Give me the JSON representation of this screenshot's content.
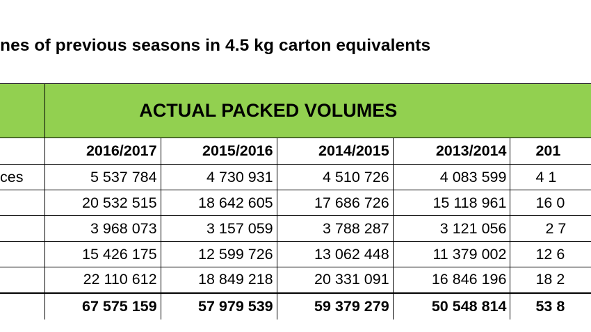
{
  "document": {
    "title": "nes of previous seasons in 4.5 kg carton equivalents"
  },
  "table": {
    "banner": "ACTUAL PACKED VOLUMES",
    "years": [
      "2016/2017",
      "2015/2016",
      "2014/2015",
      "2013/2014",
      "201"
    ],
    "rows": [
      {
        "label": "ces",
        "values": [
          "5 537 784",
          "4 730 931",
          "4 510 726",
          "4 083 599",
          "4 1"
        ]
      },
      {
        "label": "",
        "values": [
          "20 532 515",
          "18 642 605",
          "17 686 726",
          "15 118 961",
          "16 0"
        ]
      },
      {
        "label": "",
        "values": [
          "3 968 073",
          "3 157 059",
          "3 788 287",
          "3 121 056",
          "2 7"
        ]
      },
      {
        "label": "",
        "values": [
          "15 426 175",
          "12 599 726",
          "13 062 448",
          "11 379 002",
          "12 6"
        ]
      },
      {
        "label": "",
        "values": [
          "22 110 612",
          "18 849 218",
          "20 331 091",
          "16 846 196",
          "18 2"
        ]
      }
    ],
    "totals": [
      "67 575 159",
      "57 979 539",
      "59 379 279",
      "50 548 814",
      "53 8"
    ]
  }
}
